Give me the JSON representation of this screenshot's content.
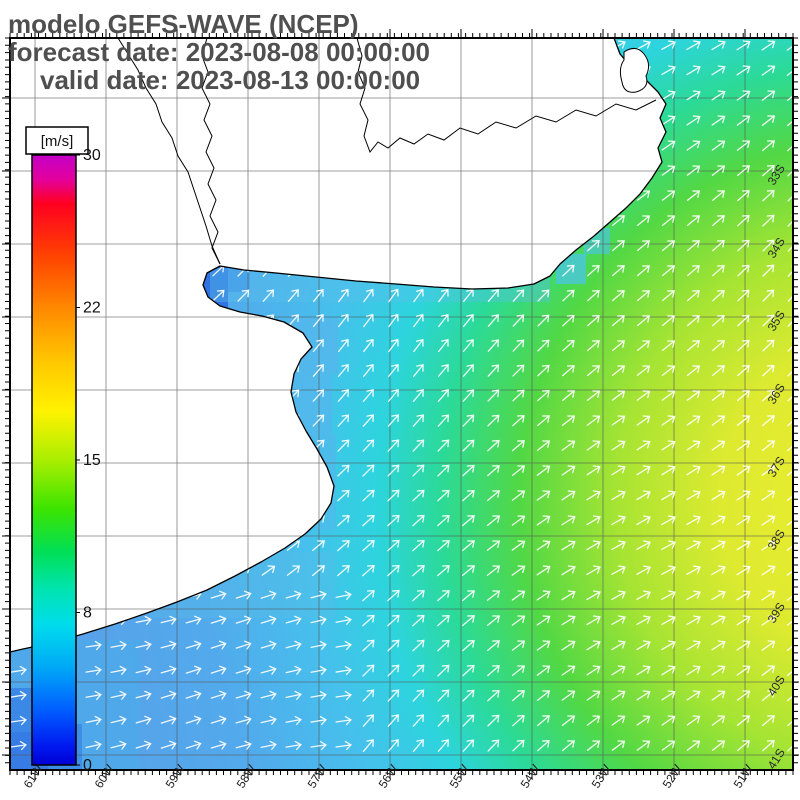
{
  "header": {
    "model_line": "modelo GEFS-WAVE (NCEP)",
    "forecast_line": "forecast date: 2023-08-08 00:00:00",
    "valid_line": "valid date: 2023-08-13 00:00:00"
  },
  "colorbar": {
    "unit": "[m/s]",
    "tick_labels": [
      "30",
      "22",
      "15",
      "8",
      "0"
    ],
    "range": [
      0,
      30
    ],
    "gradient_stops": [
      [
        "0",
        "#c400c8"
      ],
      [
        "0.04",
        "#e4009c"
      ],
      [
        "0.08",
        "#ff0020"
      ],
      [
        "0.17",
        "#ff4600"
      ],
      [
        "0.25",
        "#ff8800"
      ],
      [
        "0.34",
        "#ffc800"
      ],
      [
        "0.42",
        "#fff200"
      ],
      [
        "0.5",
        "#aaee00"
      ],
      [
        "0.58",
        "#3ce400"
      ],
      [
        "0.65",
        "#00df55"
      ],
      [
        "0.71",
        "#00e4ae"
      ],
      [
        "0.77",
        "#00dcec"
      ],
      [
        "0.84",
        "#00a8f6"
      ],
      [
        "0.91",
        "#005eff"
      ],
      [
        "0.97",
        "#0018f0"
      ],
      [
        "1",
        "#0000d4"
      ]
    ]
  },
  "axes": {
    "lat_labels": [
      "33S",
      "34S",
      "35S",
      "36S",
      "37S",
      "38S",
      "39S",
      "40S",
      "41S"
    ],
    "lon_labels": [
      "61W",
      "60W",
      "59W",
      "58W",
      "57W",
      "56W",
      "55W",
      "54W",
      "53W",
      "52W",
      "51W"
    ]
  },
  "field": {
    "arrow_color": "#ffffff",
    "ocean_gradient_stops": [
      [
        "0",
        "#f0ee30"
      ],
      [
        "0.2",
        "#ddea30"
      ],
      [
        "0.33",
        "#a6e433"
      ],
      [
        "0.45",
        "#52d844"
      ],
      [
        "0.55",
        "#2bda98"
      ],
      [
        "0.63",
        "#2dd4de"
      ],
      [
        "0.72",
        "#46c0ec"
      ],
      [
        "0.85",
        "#52aaec"
      ],
      [
        "1",
        "#57a2ea"
      ]
    ]
  },
  "chart_data": {
    "type": "heatmap",
    "title": "modelo GEFS-WAVE (NCEP)",
    "colorbar_unit": "[m/s]",
    "colorbar_ticks": [
      0,
      8,
      15,
      22,
      30
    ],
    "colorbar_range": [
      0,
      30
    ],
    "x_tick_labels": [
      "61W",
      "60W",
      "59W",
      "58W",
      "57W",
      "56W",
      "55W",
      "54W",
      "53W",
      "52W",
      "51W"
    ],
    "y_tick_labels": [
      "33S",
      "34S",
      "35S",
      "36S",
      "37S",
      "38S",
      "39S",
      "40S",
      "41S"
    ],
    "legend_position": "left",
    "field_summary": "Wind/wave vector field over the SW Atlantic off Argentina-Uruguay (Rio de la Plata region). Shaded speed is low (blue-cyan, ~4-8 m/s) near the coast and inside the estuary, increasing offshore through green (~10-12 m/s) to yellow (~14-16 m/s) toward the east and southeast edge. White arrows point predominantly toward the northeast; in the southwest corner near the coast they point nearly east."
  }
}
